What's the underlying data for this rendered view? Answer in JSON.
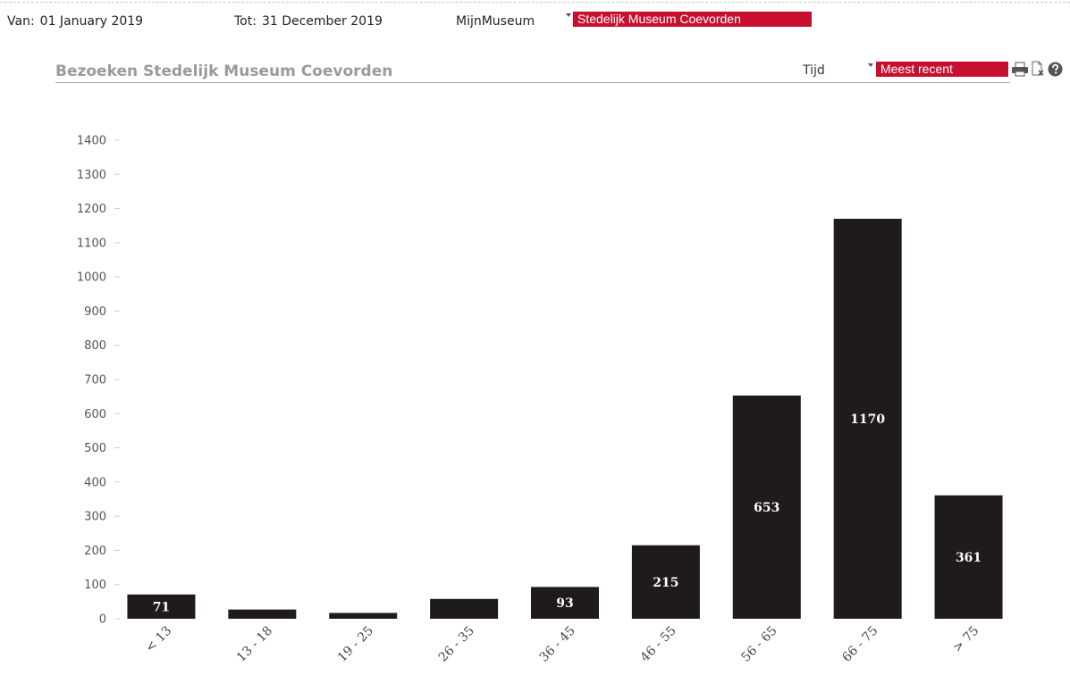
{
  "filters": {
    "from_label": "Van:",
    "from_value": "01 January 2019",
    "to_label": "Tot:",
    "to_value": "31 December 2019",
    "scope_label": "MijnMuseum",
    "scope_value": "Stedelijk Museum Coevorden"
  },
  "panel": {
    "title": "Bezoeken Stedelijk Museum Coevorden",
    "sort_label": "Tijd",
    "sort_value": "Meest recent",
    "icons": [
      "print-icon",
      "export-icon",
      "help-icon"
    ]
  },
  "colors": {
    "accent": "#c8102e",
    "bar": "#1e1b1a",
    "title": "#9a9a9a"
  },
  "chart_data": {
    "type": "bar",
    "title": "Bezoeken Stedelijk Museum Coevorden",
    "xlabel": "",
    "ylabel": "",
    "categories": [
      "< 13",
      "13 - 18",
      "19 - 25",
      "26 - 35",
      "36 - 45",
      "46 - 55",
      "56 - 65",
      "66 - 75",
      "> 75"
    ],
    "values": [
      71,
      27,
      17,
      58,
      93,
      215,
      653,
      1170,
      361
    ],
    "data_labels": [
      "71",
      "",
      "",
      "",
      "93",
      "215",
      "653",
      "1170",
      "361"
    ],
    "ylim": [
      0,
      1400
    ],
    "yticks": [
      0,
      100,
      200,
      300,
      400,
      500,
      600,
      700,
      800,
      900,
      1000,
      1100,
      1200,
      1300,
      1400
    ],
    "grid": false,
    "legend": "none"
  }
}
